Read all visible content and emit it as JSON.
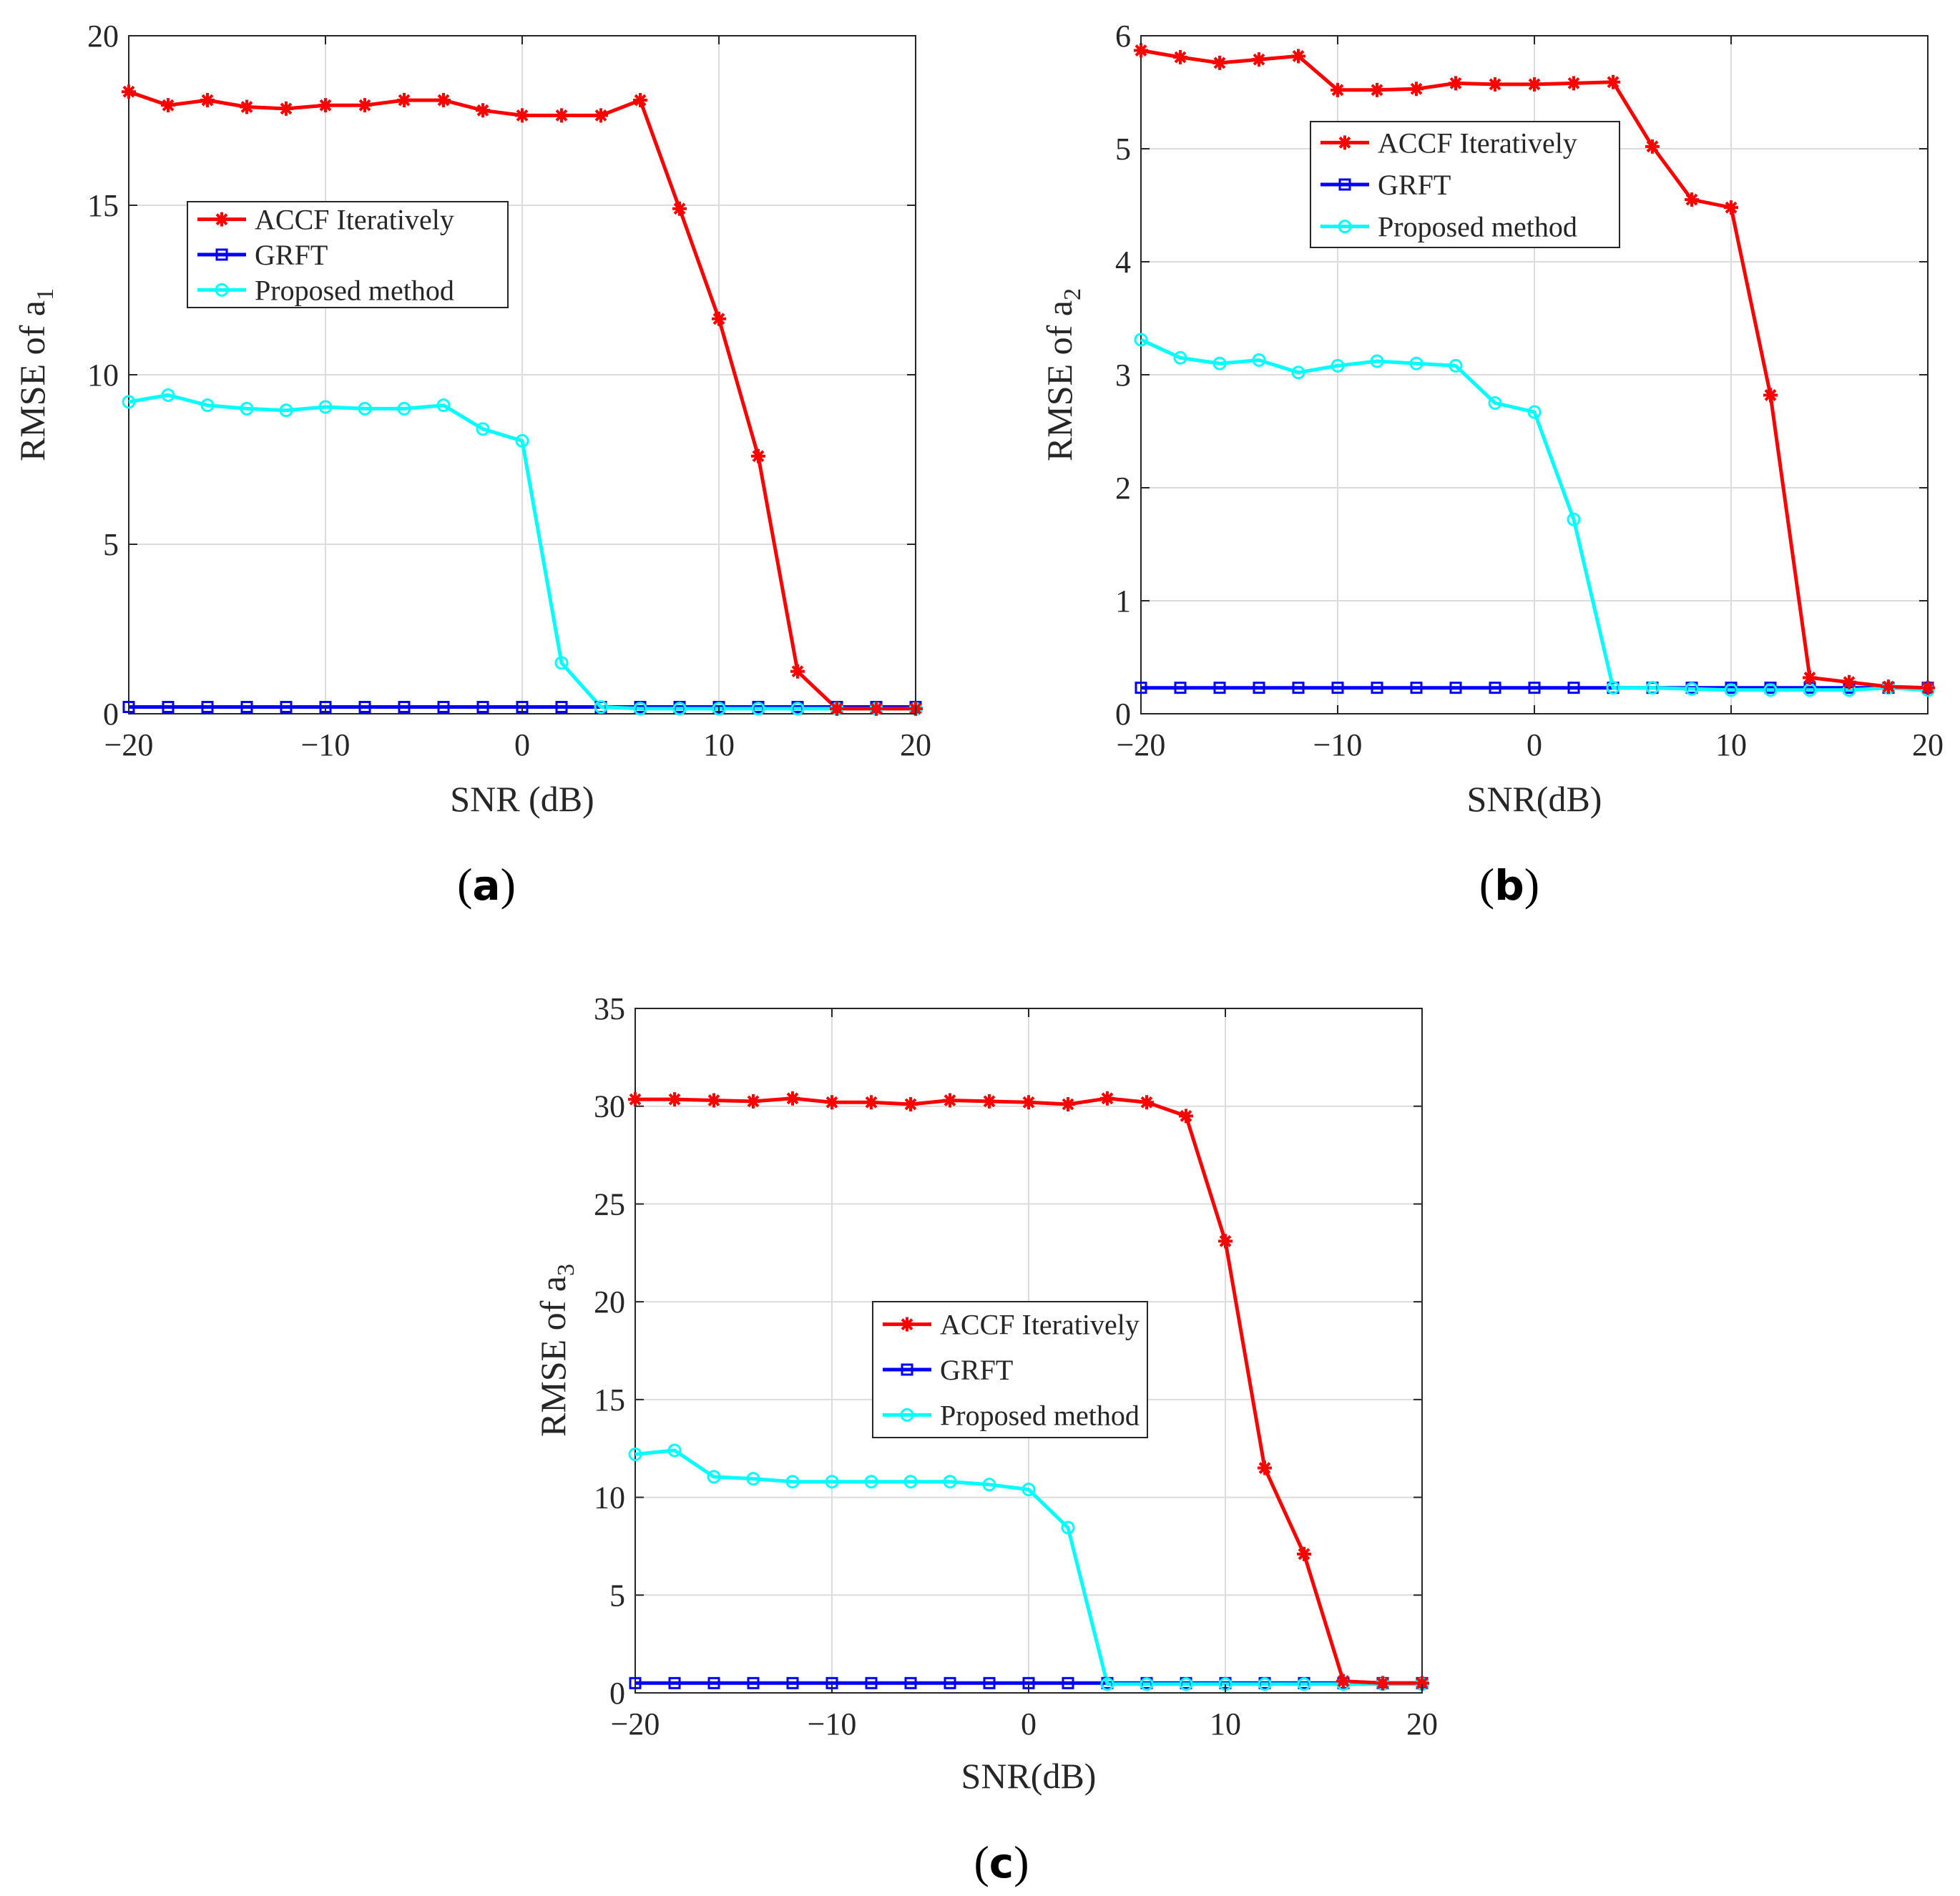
{
  "figure": {
    "panels": [
      "(a)",
      "(b)",
      "(c)"
    ]
  },
  "chart_data": [
    {
      "type": "line",
      "panel": "a",
      "caption": "(a)",
      "xlabel": "SNR (dB)",
      "ylabel": "RMSE of a",
      "ylabel_sub": "1",
      "x": [
        -20,
        -18,
        -16,
        -14,
        -12,
        -10,
        -8,
        -6,
        -4,
        -2,
        0,
        2,
        4,
        6,
        8,
        10,
        12,
        14,
        16,
        18,
        20
      ],
      "xlim": [
        -20,
        20
      ],
      "ylim": [
        0,
        20
      ],
      "xticks": [
        -20,
        -10,
        0,
        10,
        20
      ],
      "xtick_labels": [
        "−20",
        "−10",
        "0",
        "10",
        "20"
      ],
      "yticks": [
        0,
        5,
        10,
        15,
        20
      ],
      "ytick_labels": [
        "0",
        "5",
        "10",
        "15",
        "20"
      ],
      "grid": true,
      "legend": "center-left",
      "series": [
        {
          "name": "ACCF Iteratively",
          "color": "#ff0000",
          "marker": "asterisk",
          "values": [
            18.35,
            17.95,
            18.1,
            17.9,
            17.85,
            17.95,
            17.95,
            18.1,
            18.1,
            17.8,
            17.65,
            17.65,
            17.65,
            18.1,
            14.9,
            11.65,
            7.6,
            1.25,
            0.15,
            0.15,
            0.15
          ]
        },
        {
          "name": "GRFT",
          "color": "#0000ff",
          "marker": "square",
          "values": [
            0.2,
            0.2,
            0.2,
            0.2,
            0.2,
            0.2,
            0.2,
            0.2,
            0.2,
            0.2,
            0.2,
            0.2,
            0.2,
            0.2,
            0.2,
            0.2,
            0.2,
            0.2,
            0.2,
            0.2,
            0.2
          ]
        },
        {
          "name": "Proposed method",
          "color": "#00ffff",
          "marker": "circle",
          "values": [
            9.2,
            9.4,
            9.1,
            9.0,
            8.95,
            9.05,
            9.0,
            9.0,
            9.1,
            8.4,
            8.05,
            1.5,
            0.2,
            0.15,
            0.15,
            0.15,
            0.15,
            0.15,
            0.15,
            0.15,
            0.15
          ]
        }
      ]
    },
    {
      "type": "line",
      "panel": "b",
      "caption": "(b)",
      "xlabel": "SNR(dB)",
      "ylabel": "RMSE of a",
      "ylabel_sub": "2",
      "x": [
        -20,
        -18,
        -16,
        -14,
        -12,
        -10,
        -8,
        -6,
        -4,
        -2,
        0,
        2,
        4,
        6,
        8,
        10,
        12,
        14,
        16,
        18,
        20
      ],
      "xlim": [
        -20,
        20
      ],
      "ylim": [
        0,
        6
      ],
      "xticks": [
        -20,
        -10,
        0,
        10,
        20
      ],
      "xtick_labels": [
        "−20",
        "−10",
        "0",
        "10",
        "20"
      ],
      "yticks": [
        0,
        1,
        2,
        3,
        4,
        5,
        6
      ],
      "ytick_labels": [
        "0",
        "1",
        "2",
        "3",
        "4",
        "5",
        "6"
      ],
      "grid": true,
      "legend": "upper-center",
      "series": [
        {
          "name": "ACCF Iteratively",
          "color": "#ff0000",
          "marker": "asterisk",
          "values": [
            5.87,
            5.81,
            5.76,
            5.79,
            5.82,
            5.52,
            5.52,
            5.53,
            5.58,
            5.57,
            5.57,
            5.58,
            5.59,
            5.02,
            4.55,
            4.48,
            2.82,
            0.32,
            0.28,
            0.24,
            0.23
          ]
        },
        {
          "name": "GRFT",
          "color": "#0000ff",
          "marker": "square",
          "values": [
            0.23,
            0.23,
            0.23,
            0.23,
            0.23,
            0.23,
            0.23,
            0.23,
            0.23,
            0.23,
            0.23,
            0.23,
            0.23,
            0.23,
            0.23,
            0.23,
            0.23,
            0.23,
            0.23,
            0.23,
            0.23
          ]
        },
        {
          "name": "Proposed method",
          "color": "#00ffff",
          "marker": "circle",
          "values": [
            3.31,
            3.15,
            3.1,
            3.13,
            3.02,
            3.08,
            3.12,
            3.1,
            3.08,
            2.75,
            2.67,
            1.72,
            0.23,
            0.23,
            0.22,
            0.21,
            0.21,
            0.21,
            0.21,
            0.23,
            0.21
          ]
        }
      ]
    },
    {
      "type": "line",
      "panel": "c",
      "caption": "(c)",
      "xlabel": "SNR(dB)",
      "ylabel": "RMSE of a",
      "ylabel_sub": "3",
      "x": [
        -20,
        -18,
        -16,
        -14,
        -12,
        -10,
        -8,
        -6,
        -4,
        -2,
        0,
        2,
        4,
        6,
        8,
        10,
        12,
        14,
        16,
        18,
        20
      ],
      "xlim": [
        -20,
        20
      ],
      "ylim": [
        0,
        35
      ],
      "xticks": [
        -20,
        -10,
        0,
        10,
        20
      ],
      "xtick_labels": [
        "−20",
        "−10",
        "0",
        "10",
        "20"
      ],
      "yticks": [
        0,
        5,
        10,
        15,
        20,
        25,
        30,
        35
      ],
      "ytick_labels": [
        "0",
        "5",
        "10",
        "15",
        "20",
        "25",
        "30",
        "35"
      ],
      "grid": true,
      "legend": "center",
      "series": [
        {
          "name": "ACCF Iteratively",
          "color": "#ff0000",
          "marker": "asterisk",
          "values": [
            30.35,
            30.35,
            30.3,
            30.25,
            30.4,
            30.2,
            30.2,
            30.1,
            30.3,
            30.25,
            30.2,
            30.1,
            30.4,
            30.2,
            29.5,
            23.1,
            11.5,
            7.1,
            0.6,
            0.5,
            0.5
          ]
        },
        {
          "name": "GRFT",
          "color": "#0000ff",
          "marker": "square",
          "values": [
            0.5,
            0.5,
            0.5,
            0.5,
            0.5,
            0.5,
            0.5,
            0.5,
            0.5,
            0.5,
            0.5,
            0.5,
            0.5,
            0.5,
            0.5,
            0.5,
            0.5,
            0.5,
            0.5,
            0.5,
            0.5
          ]
        },
        {
          "name": "Proposed method",
          "color": "#00ffff",
          "marker": "circle",
          "values": [
            12.2,
            12.4,
            11.05,
            10.95,
            10.8,
            10.8,
            10.8,
            10.8,
            10.8,
            10.65,
            10.4,
            8.45,
            0.45,
            0.45,
            0.45,
            0.45,
            0.45,
            0.45,
            0.45,
            0.45,
            0.45
          ]
        }
      ]
    }
  ]
}
